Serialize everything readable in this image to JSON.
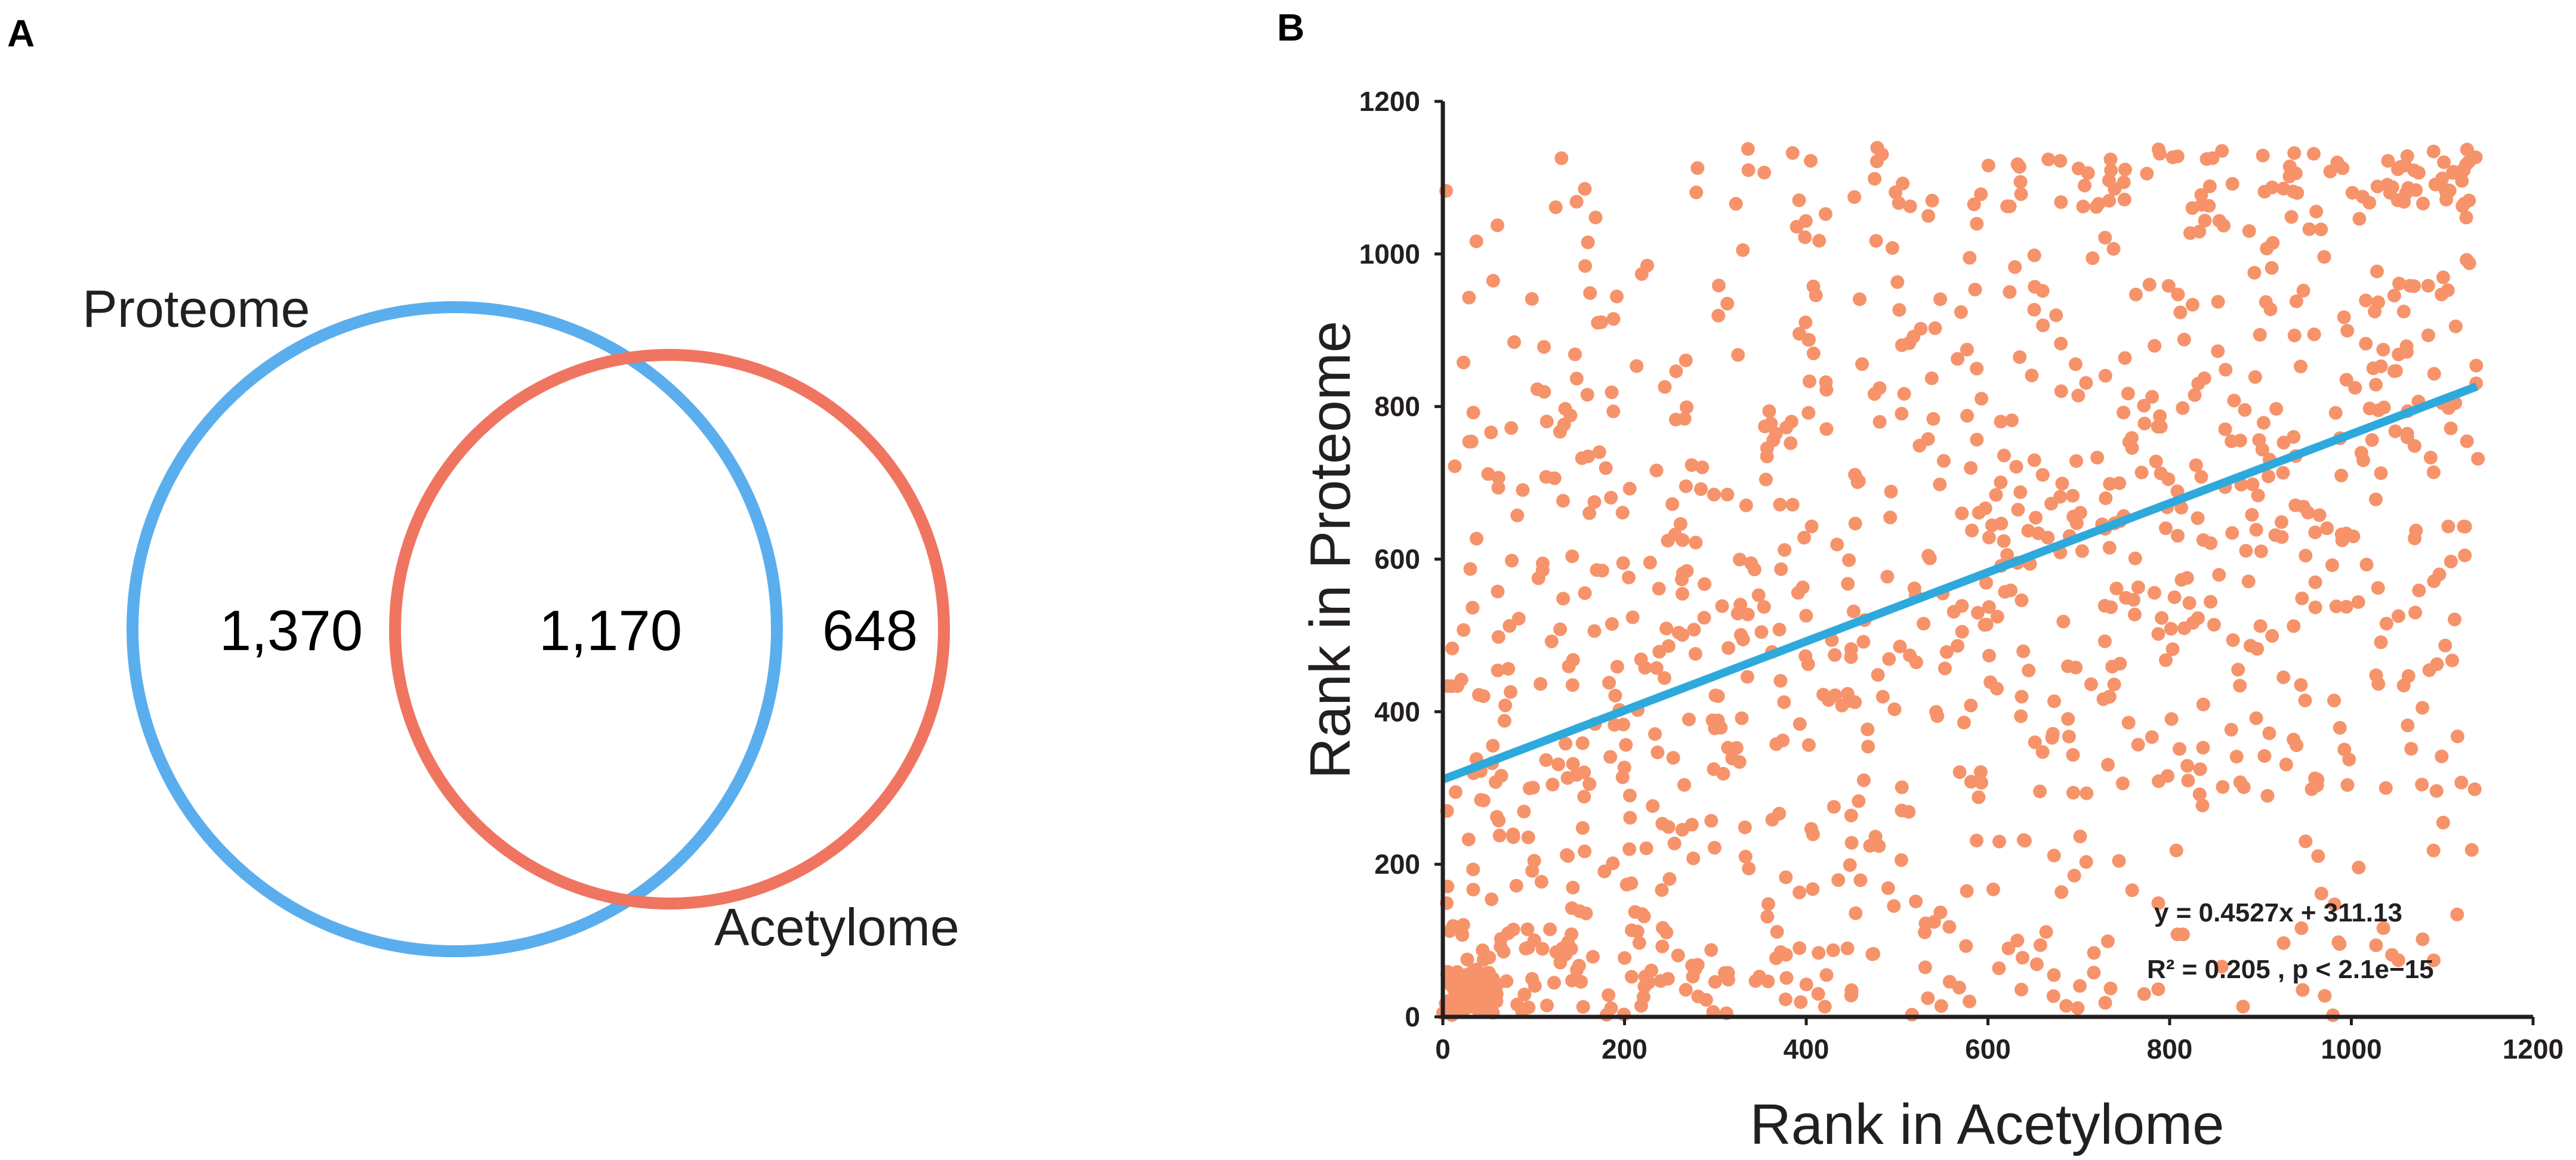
{
  "panels": {
    "a_label": "A",
    "b_label": "B"
  },
  "venn": {
    "set1_label": "Proteome",
    "set2_label": "Acetylome",
    "only_set1": "1,370",
    "intersection": "1,170",
    "only_set2": "648",
    "set1_color": "#5aaeee",
    "set2_color": "#f07560"
  },
  "chart_data": {
    "type": "scatter",
    "xlabel": "Rank in Acetylome",
    "ylabel": "Rank in Proteome",
    "xlim": [
      0,
      1200
    ],
    "ylim": [
      0,
      1200
    ],
    "xticks": [
      0,
      200,
      400,
      600,
      800,
      1000,
      1200
    ],
    "yticks": [
      0,
      200,
      400,
      600,
      800,
      1000,
      1200
    ],
    "point_color": "#f6936a",
    "point_count": 1170,
    "fit": {
      "slope": 0.4527,
      "intercept": 311.13,
      "x_range": [
        0,
        1138
      ],
      "color": "#2ea9dc"
    },
    "equation_text": "y = 0.4527x + 311.13",
    "stats_text": "R² = 0.205  , p < 2.1e−15"
  }
}
